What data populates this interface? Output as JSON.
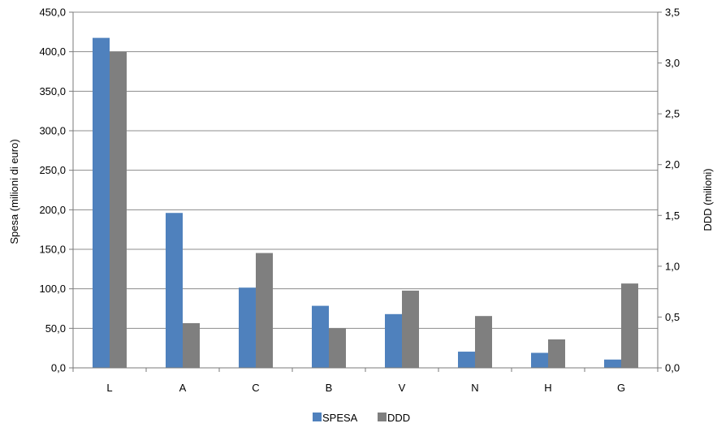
{
  "chart_data": {
    "type": "bar",
    "categories": [
      "L",
      "A",
      "C",
      "B",
      "V",
      "N",
      "H",
      "G"
    ],
    "series": [
      {
        "name": "SPESA",
        "axis": "left",
        "color": "#4f81bd",
        "values": [
          417.5,
          196.0,
          101.5,
          78.5,
          68.0,
          20.5,
          19.0,
          10.5
        ]
      },
      {
        "name": "DDD",
        "axis": "right",
        "color": "#7f7f7f",
        "values": [
          3.11,
          0.44,
          1.13,
          0.39,
          0.76,
          0.51,
          0.28,
          0.83
        ]
      }
    ],
    "ylabel": "Spesa (milioni di euro)",
    "y2label": "DDD (milioni)",
    "ylim": [
      0,
      450
    ],
    "y2lim": [
      0,
      3.5
    ],
    "yticks": [
      "0,0",
      "50,0",
      "100,0",
      "150,0",
      "200,0",
      "250,0",
      "300,0",
      "350,0",
      "400,0",
      "450,0"
    ],
    "y2ticks": [
      "0,0",
      "0,5",
      "1,0",
      "1,5",
      "2,0",
      "2,5",
      "3,0",
      "3,5"
    ],
    "grid": true,
    "legend": "bottom-center"
  }
}
